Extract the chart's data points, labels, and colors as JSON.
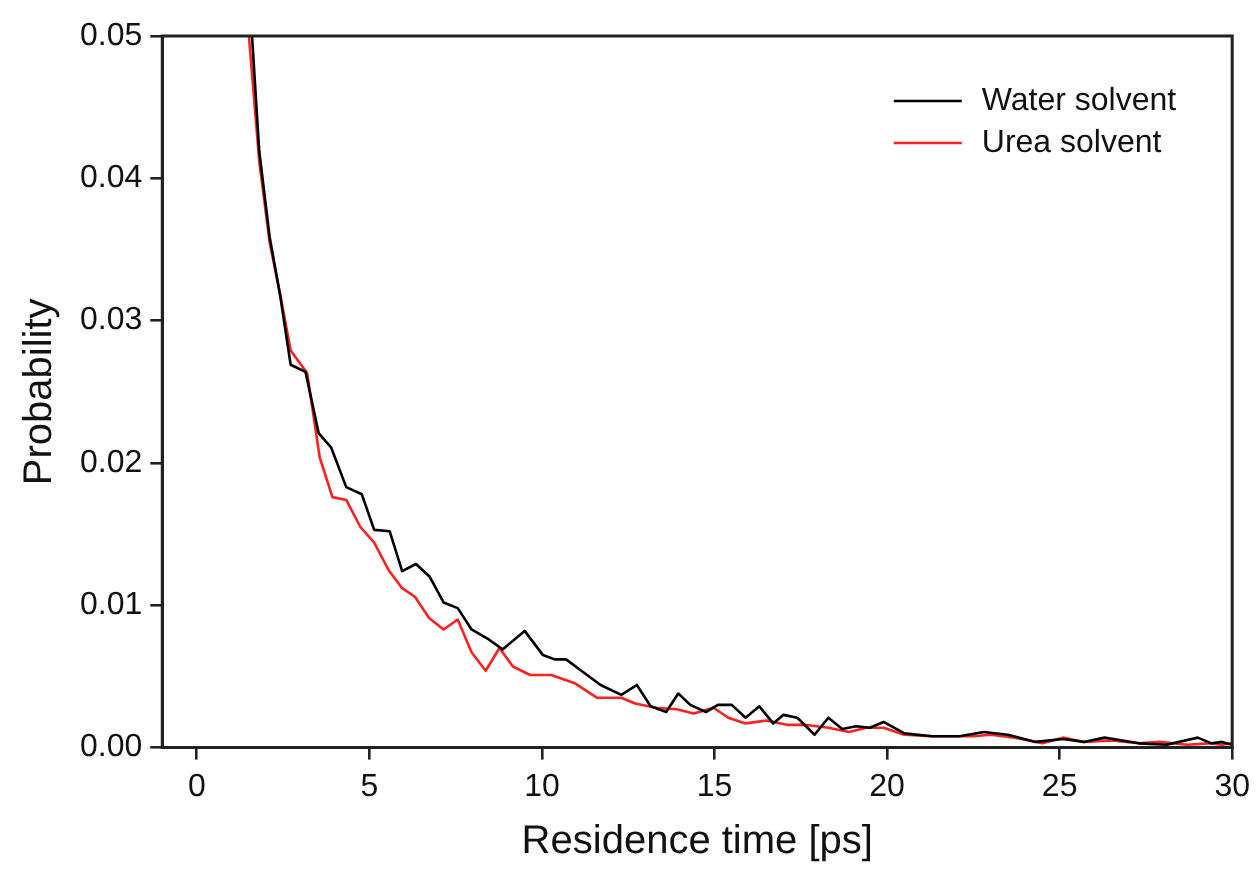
{
  "chart_data": {
    "type": "line",
    "xlabel": "Residence time [ps]",
    "ylabel": "Probability",
    "xlim": [
      -1,
      30
    ],
    "xticks": [
      0,
      5,
      10,
      15,
      20,
      25,
      30
    ],
    "ylim": [
      0,
      0.05
    ],
    "yticks": [
      {
        "value": 0,
        "label": "0.00"
      },
      0.01,
      0.02,
      0.03,
      0.04,
      0.05
    ],
    "grid": false,
    "legend": "top right",
    "marker": "none",
    "line_style": "solid",
    "series": [
      {
        "name": "Water solvent",
        "color": "#000000",
        "x": [
          1.6,
          1.81,
          2.11,
          2.42,
          2.72,
          3.15,
          3.53,
          3.89,
          4.33,
          4.78,
          5.14,
          5.59,
          5.95,
          6.35,
          6.75,
          7.15,
          7.56,
          7.96,
          8.46,
          8.86,
          9.5,
          10.03,
          10.37,
          10.7,
          11.2,
          11.7,
          12.3,
          12.75,
          13.15,
          13.6,
          13.95,
          14.3,
          14.75,
          15.1,
          15.5,
          15.9,
          16.3,
          16.7,
          17.0,
          17.4,
          17.9,
          18.3,
          18.7,
          19.1,
          19.5,
          19.9,
          20.5,
          21.3,
          22.1,
          22.8,
          23.5,
          24.3,
          25.1,
          25.7,
          26.3,
          27.3,
          28.1,
          29.0,
          29.4,
          29.7,
          30
        ],
        "values": [
          0.05,
          0.0419,
          0.0359,
          0.0317,
          0.0269,
          0.0264,
          0.0221,
          0.0211,
          0.0183,
          0.0178,
          0.0153,
          0.0152,
          0.0124,
          0.0129,
          0.012,
          0.0102,
          0.0098,
          0.0083,
          0.0076,
          0.0069,
          0.0082,
          0.0065,
          0.0062,
          0.0062,
          0.0053,
          0.0044,
          0.0037,
          0.0044,
          0.0029,
          0.0025,
          0.0038,
          0.003,
          0.0025,
          0.003,
          0.003,
          0.0021,
          0.0029,
          0.0017,
          0.0023,
          0.0021,
          0.0009,
          0.0021,
          0.0013,
          0.0015,
          0.0014,
          0.0018,
          0.001,
          0.0008,
          0.0008,
          0.0011,
          0.0009,
          0.0004,
          0.0006,
          0.0004,
          0.0007,
          0.0003,
          0.0002,
          0.0007,
          0.0003,
          0.0004,
          0.0002
        ]
      },
      {
        "name": "Urea solvent",
        "color": "#ff2020",
        "x": [
          1.51,
          1.81,
          2.11,
          2.42,
          2.72,
          3.2,
          3.56,
          3.93,
          4.33,
          4.74,
          5.14,
          5.55,
          5.95,
          6.32,
          6.73,
          7.15,
          7.56,
          7.96,
          8.37,
          8.77,
          9.16,
          9.66,
          10.27,
          10.97,
          11.6,
          12.3,
          12.7,
          13.3,
          13.9,
          14.4,
          14.97,
          15.4,
          15.9,
          16.5,
          17.1,
          17.6,
          18.3,
          18.9,
          19.4,
          19.9,
          20.5,
          21.3,
          22.1,
          22.5,
          23.0,
          23.7,
          24.5,
          25.1,
          25.7,
          26.5,
          27.3,
          27.9,
          28.7,
          29.3,
          29.7,
          30
        ],
        "values": [
          0.05,
          0.0412,
          0.0355,
          0.0318,
          0.0279,
          0.0263,
          0.0204,
          0.0176,
          0.0174,
          0.0155,
          0.0144,
          0.0125,
          0.0112,
          0.0106,
          0.0091,
          0.0083,
          0.009,
          0.0067,
          0.0054,
          0.007,
          0.0057,
          0.0051,
          0.0051,
          0.0045,
          0.0035,
          0.0035,
          0.0031,
          0.0028,
          0.0027,
          0.0024,
          0.0028,
          0.0021,
          0.0017,
          0.0019,
          0.0016,
          0.0016,
          0.0014,
          0.0011,
          0.0014,
          0.0014,
          0.0009,
          0.0008,
          0.0008,
          0.0008,
          0.0009,
          0.0007,
          0.0003,
          0.0007,
          0.0004,
          0.0005,
          0.0003,
          0.0004,
          0.0002,
          0.0003,
          0.0002,
          0.0003
        ]
      }
    ]
  }
}
